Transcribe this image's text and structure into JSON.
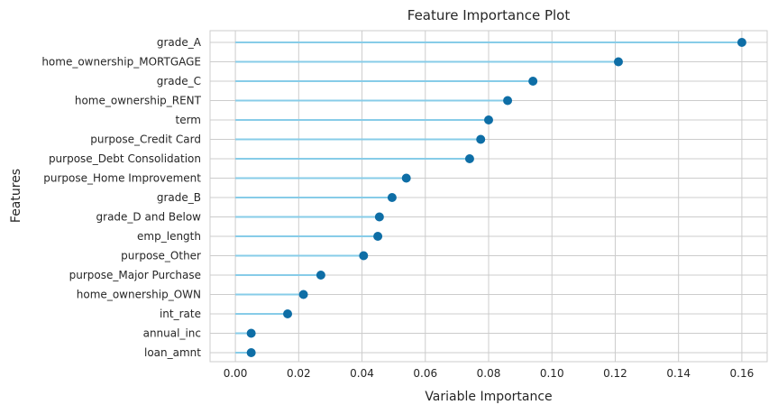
{
  "chart_data": {
    "type": "lollipop",
    "title": "Feature Importance Plot",
    "xlabel": "Variable Importance",
    "ylabel": "Features",
    "xlim": [
      -0.008,
      0.168
    ],
    "xticks": [
      0.0,
      0.02,
      0.04,
      0.06,
      0.08,
      0.1,
      0.12,
      0.14,
      0.16
    ],
    "xtick_labels": [
      "0.00",
      "0.02",
      "0.04",
      "0.06",
      "0.08",
      "0.10",
      "0.12",
      "0.14",
      "0.16"
    ],
    "grid": true,
    "colors": {
      "stem": "#87cce8",
      "marker": "#0e6ea6",
      "grid": "#cccccc",
      "text": "#262626"
    },
    "categories": [
      "grade_A",
      "home_ownership_MORTGAGE",
      "grade_C",
      "home_ownership_RENT",
      "term",
      "purpose_Credit Card",
      "purpose_Debt Consolidation",
      "purpose_Home Improvement",
      "grade_B",
      "grade_D and Below",
      "emp_length",
      "purpose_Other",
      "purpose_Major Purchase",
      "home_ownership_OWN",
      "int_rate",
      "annual_inc",
      "loan_amnt"
    ],
    "values": [
      0.16,
      0.121,
      0.094,
      0.086,
      0.08,
      0.0775,
      0.074,
      0.054,
      0.0495,
      0.0455,
      0.045,
      0.0405,
      0.027,
      0.0215,
      0.0165,
      0.005,
      0.005
    ]
  }
}
